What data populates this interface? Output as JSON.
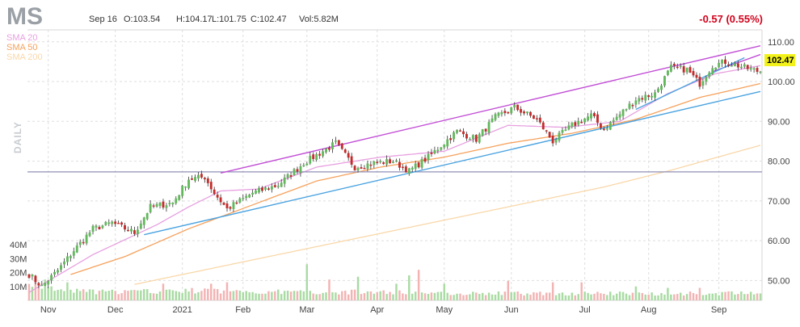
{
  "header": {
    "ticker": "MS",
    "date": "Sep 16",
    "open": "O:103.54",
    "high": "H:104.17",
    "low": "L:101.75",
    "close": "C:102.47",
    "volume": "Vol:5.82M",
    "change": "-0.57 (0.55%)"
  },
  "period_label": "DAILY",
  "last_price_label": "102.47",
  "colors": {
    "up": "#62b85c",
    "down": "#c42b2b",
    "sma20": "#e7a0e0",
    "sma50": "#f6a15c",
    "sma200": "#f9d7a8",
    "channel": "#c24fd6",
    "trend": "#4aa3e0",
    "support": "#8f8fb8",
    "badge": "#f2f21a"
  },
  "chart_data": {
    "type": "candlestick",
    "title": "MS",
    "y_axis": {
      "ticks": [
        50,
        60,
        70,
        80,
        90,
        100,
        110
      ],
      "labels": [
        "50.00",
        "60.00",
        "70.00",
        "80.00",
        "90.00",
        "100.00",
        "110.00"
      ],
      "range": [
        45,
        113
      ]
    },
    "x_axis": {
      "labels": [
        "Nov",
        "Dec",
        "2021",
        "Feb",
        "Mar",
        "Apr",
        "May",
        "Jun",
        "Jul",
        "Aug",
        "Sep"
      ],
      "label_index": [
        6,
        27,
        48,
        67,
        87,
        109,
        130,
        151,
        174,
        194,
        216
      ]
    },
    "volume_axis": {
      "ticks": [
        10,
        20,
        30,
        40
      ],
      "labels": [
        "10M",
        "20M",
        "30M",
        "40M"
      ],
      "unit": "M"
    },
    "legend": [
      {
        "name": "SMA 20",
        "color": "#e7a0e0"
      },
      {
        "name": "SMA 50",
        "color": "#f6a15c"
      },
      {
        "name": "SMA 200",
        "color": "#f9d7a8"
      }
    ],
    "anchors": [
      {
        "i": 0,
        "p": 51.5
      },
      {
        "i": 4,
        "p": 48.5
      },
      {
        "i": 9,
        "p": 52.5
      },
      {
        "i": 14,
        "p": 57.5
      },
      {
        "i": 20,
        "p": 63.0
      },
      {
        "i": 26,
        "p": 64.5
      },
      {
        "i": 33,
        "p": 62.0
      },
      {
        "i": 38,
        "p": 68.5
      },
      {
        "i": 45,
        "p": 69.5
      },
      {
        "i": 50,
        "p": 75.5
      },
      {
        "i": 55,
        "p": 76.0
      },
      {
        "i": 58,
        "p": 72.0
      },
      {
        "i": 62,
        "p": 68.0
      },
      {
        "i": 70,
        "p": 72.0
      },
      {
        "i": 78,
        "p": 74.0
      },
      {
        "i": 86,
        "p": 79.5
      },
      {
        "i": 92,
        "p": 82.5
      },
      {
        "i": 96,
        "p": 84.5
      },
      {
        "i": 102,
        "p": 78.5
      },
      {
        "i": 108,
        "p": 79.5
      },
      {
        "i": 114,
        "p": 80.0
      },
      {
        "i": 119,
        "p": 77.5
      },
      {
        "i": 125,
        "p": 81.0
      },
      {
        "i": 134,
        "p": 87.5
      },
      {
        "i": 140,
        "p": 85.5
      },
      {
        "i": 146,
        "p": 91.0
      },
      {
        "i": 152,
        "p": 93.5
      },
      {
        "i": 159,
        "p": 90.5
      },
      {
        "i": 164,
        "p": 85.0
      },
      {
        "i": 170,
        "p": 89.0
      },
      {
        "i": 176,
        "p": 91.5
      },
      {
        "i": 180,
        "p": 88.0
      },
      {
        "i": 186,
        "p": 92.5
      },
      {
        "i": 190,
        "p": 95.5
      },
      {
        "i": 196,
        "p": 97.0
      },
      {
        "i": 201,
        "p": 103.5
      },
      {
        "i": 206,
        "p": 103.0
      },
      {
        "i": 210,
        "p": 99.5
      },
      {
        "i": 214,
        "p": 104.0
      },
      {
        "i": 218,
        "p": 105.0
      },
      {
        "i": 224,
        "p": 103.5
      },
      {
        "i": 229,
        "p": 102.47
      }
    ],
    "sma20": [
      {
        "i": 0,
        "p": 47.0
      },
      {
        "i": 20,
        "p": 56.5
      },
      {
        "i": 40,
        "p": 64.0
      },
      {
        "i": 50,
        "p": 68.5
      },
      {
        "i": 60,
        "p": 72.5
      },
      {
        "i": 72,
        "p": 73.0
      },
      {
        "i": 90,
        "p": 78.5
      },
      {
        "i": 110,
        "p": 81.0
      },
      {
        "i": 130,
        "p": 82.5
      },
      {
        "i": 150,
        "p": 89.0
      },
      {
        "i": 168,
        "p": 88.5
      },
      {
        "i": 185,
        "p": 90.0
      },
      {
        "i": 200,
        "p": 97.0
      },
      {
        "i": 215,
        "p": 102.0
      },
      {
        "i": 229,
        "p": 104.0
      }
    ],
    "sma50": [
      {
        "i": 13,
        "p": 51.5
      },
      {
        "i": 30,
        "p": 56.0
      },
      {
        "i": 50,
        "p": 63.0
      },
      {
        "i": 70,
        "p": 69.0
      },
      {
        "i": 90,
        "p": 75.0
      },
      {
        "i": 110,
        "p": 78.5
      },
      {
        "i": 130,
        "p": 81.0
      },
      {
        "i": 150,
        "p": 84.5
      },
      {
        "i": 170,
        "p": 87.0
      },
      {
        "i": 190,
        "p": 90.5
      },
      {
        "i": 210,
        "p": 96.0
      },
      {
        "i": 229,
        "p": 99.5
      }
    ],
    "sma200": [
      {
        "i": 33,
        "p": 49.0
      },
      {
        "i": 60,
        "p": 53.5
      },
      {
        "i": 90,
        "p": 58.5
      },
      {
        "i": 120,
        "p": 63.5
      },
      {
        "i": 150,
        "p": 68.5
      },
      {
        "i": 180,
        "p": 73.5
      },
      {
        "i": 200,
        "p": 77.5
      },
      {
        "i": 229,
        "p": 84.0
      }
    ],
    "trendlines": [
      {
        "name": "upper-channel",
        "from": {
          "i": 60,
          "p": 77.0
        },
        "to": {
          "i": 229,
          "p": 109.0
        }
      },
      {
        "name": "upper-short",
        "from": {
          "i": 214,
          "p": 102.5
        },
        "to": {
          "i": 229,
          "p": 106.8
        }
      },
      {
        "name": "trend-lower",
        "from": {
          "i": 36,
          "p": 61.5
        },
        "to": {
          "i": 229,
          "p": 97.5
        }
      },
      {
        "name": "trend-mid",
        "from": {
          "i": 190,
          "p": 93.0
        },
        "to": {
          "i": 224,
          "p": 106.0
        }
      }
    ],
    "support_level": 77.3,
    "volume_anchors": [
      {
        "i": 0,
        "v": 10
      },
      {
        "i": 10,
        "v": 7
      },
      {
        "i": 25,
        "v": 6
      },
      {
        "i": 55,
        "v": 7
      },
      {
        "i": 80,
        "v": 6
      },
      {
        "i": 110,
        "v": 6
      },
      {
        "i": 140,
        "v": 5
      },
      {
        "i": 180,
        "v": 5
      },
      {
        "i": 229,
        "v": 5
      }
    ],
    "volume_spikes": [
      {
        "i": 2,
        "v": 18
      },
      {
        "i": 5,
        "v": 15
      },
      {
        "i": 12,
        "v": 13
      },
      {
        "i": 42,
        "v": 12
      },
      {
        "i": 57,
        "v": 12
      },
      {
        "i": 62,
        "v": 13
      },
      {
        "i": 87,
        "v": 26
      },
      {
        "i": 94,
        "v": 15
      },
      {
        "i": 103,
        "v": 17
      },
      {
        "i": 115,
        "v": 12
      },
      {
        "i": 119,
        "v": 18
      },
      {
        "i": 122,
        "v": 22
      },
      {
        "i": 130,
        "v": 12
      },
      {
        "i": 150,
        "v": 14
      },
      {
        "i": 164,
        "v": 13
      },
      {
        "i": 173,
        "v": 13
      },
      {
        "i": 190,
        "v": 10
      },
      {
        "i": 200,
        "v": 9
      },
      {
        "i": 210,
        "v": 9
      }
    ],
    "candle_count": 230
  }
}
